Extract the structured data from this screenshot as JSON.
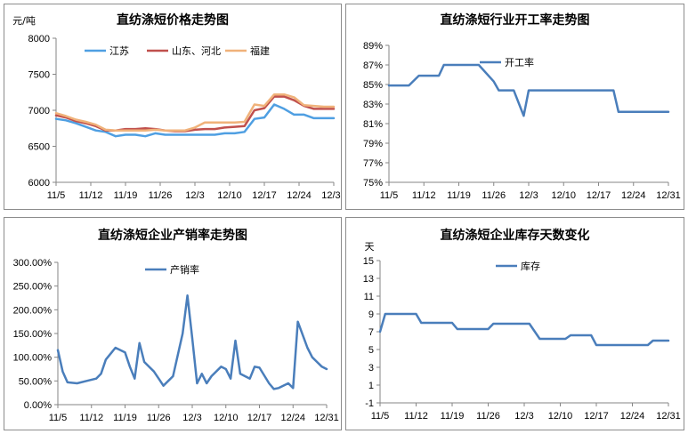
{
  "chart_data": [
    {
      "type": "line",
      "title": "直纺涤短价格走势图",
      "unit_label": "元/吨",
      "ylim": [
        6000,
        8000
      ],
      "yticks": [
        "6000",
        "6500",
        "7000",
        "7500",
        "8000"
      ],
      "x_ticks": [
        "11/5",
        "11/12",
        "11/19",
        "11/26",
        "12/3",
        "12/10",
        "12/17",
        "12/24",
        "12/31"
      ],
      "x_range": [
        0,
        56
      ],
      "legend_position": "top",
      "series": [
        {
          "name": "江苏",
          "color": "#4f9fe2",
          "x": [
            0,
            2,
            4,
            6,
            8,
            10,
            12,
            14,
            16,
            18,
            20,
            22,
            24,
            26,
            28,
            30,
            32,
            34,
            36,
            38,
            40,
            42,
            44,
            46,
            48,
            50,
            52,
            54,
            56
          ],
          "values": [
            6880,
            6860,
            6820,
            6770,
            6720,
            6700,
            6640,
            6660,
            6660,
            6640,
            6680,
            6660,
            6660,
            6660,
            6660,
            6660,
            6660,
            6680,
            6680,
            6700,
            6880,
            6900,
            7080,
            7020,
            6940,
            6940,
            6890,
            6890,
            6890
          ]
        },
        {
          "name": "山东、河北",
          "color": "#c0504d",
          "x": [
            0,
            2,
            4,
            6,
            8,
            10,
            12,
            14,
            16,
            18,
            20,
            22,
            24,
            26,
            28,
            30,
            32,
            34,
            36,
            38,
            40,
            42,
            44,
            46,
            48,
            50,
            52,
            54,
            56
          ],
          "values": [
            6930,
            6900,
            6850,
            6820,
            6780,
            6720,
            6720,
            6740,
            6740,
            6750,
            6740,
            6720,
            6710,
            6710,
            6730,
            6740,
            6740,
            6760,
            6770,
            6780,
            7000,
            7030,
            7190,
            7190,
            7140,
            7060,
            7020,
            7020,
            7020
          ]
        },
        {
          "name": "福建",
          "color": "#f0b27a",
          "x": [
            0,
            2,
            4,
            6,
            8,
            10,
            12,
            14,
            16,
            18,
            20,
            22,
            24,
            26,
            28,
            30,
            32,
            34,
            36,
            38,
            40,
            42,
            44,
            46,
            48,
            50,
            52,
            54,
            56
          ],
          "values": [
            6960,
            6920,
            6870,
            6840,
            6800,
            6730,
            6720,
            6720,
            6720,
            6720,
            6730,
            6720,
            6720,
            6720,
            6760,
            6830,
            6830,
            6830,
            6830,
            6840,
            7080,
            7060,
            7220,
            7220,
            7180,
            7070,
            7060,
            7050,
            7050
          ]
        }
      ]
    },
    {
      "type": "line",
      "title": "直纺涤短行业开工率走势图",
      "ylim": [
        75,
        89
      ],
      "yticks": [
        "75%",
        "77%",
        "79%",
        "81%",
        "83%",
        "85%",
        "87%",
        "89%"
      ],
      "x_ticks": [
        "11/5",
        "11/12",
        "11/19",
        "11/26",
        "12/3",
        "12/10",
        "12/17",
        "12/24",
        "12/31"
      ],
      "x_range": [
        0,
        56
      ],
      "legend_position": "top",
      "series": [
        {
          "name": "开工率",
          "color": "#4a7ebb",
          "x": [
            0,
            1,
            3,
            4,
            6,
            8,
            10,
            11,
            13,
            15,
            17,
            18,
            21,
            22,
            25,
            27,
            28,
            32,
            35,
            42,
            45,
            46,
            49,
            53,
            56
          ],
          "values": [
            84.9,
            84.9,
            84.9,
            84.9,
            85.9,
            85.9,
            85.9,
            87.0,
            87.0,
            87.0,
            87.0,
            87.0,
            85.3,
            84.4,
            84.4,
            81.8,
            84.4,
            84.4,
            84.4,
            84.4,
            84.4,
            82.2,
            82.2,
            82.2,
            82.2
          ]
        }
      ]
    },
    {
      "type": "line",
      "title": "直纺涤短企业产销率走势图",
      "ylim": [
        0,
        300
      ],
      "yticks": [
        "0.00%",
        "50.00%",
        "100.00%",
        "150.00%",
        "200.00%",
        "250.00%",
        "300.00%"
      ],
      "x_ticks": [
        "11/5",
        "11/12",
        "11/19",
        "11/26",
        "12/3",
        "12/10",
        "12/17",
        "12/24",
        "12/31"
      ],
      "x_range": [
        0,
        56
      ],
      "legend_position": "top",
      "series": [
        {
          "name": "产销率",
          "color": "#4a7ebb",
          "x": [
            0,
            1,
            2,
            4,
            6,
            8,
            9,
            10,
            12,
            14,
            15,
            16,
            17,
            18,
            20,
            21,
            22,
            24,
            26,
            27,
            28,
            29,
            30,
            31,
            32,
            34,
            35,
            36,
            37,
            38,
            40,
            41,
            42,
            44,
            45,
            46,
            48,
            49,
            50,
            52,
            53,
            54,
            55,
            56
          ],
          "values": [
            115,
            70,
            47,
            45,
            50,
            55,
            65,
            95,
            120,
            110,
            80,
            55,
            130,
            90,
            70,
            55,
            40,
            60,
            150,
            230,
            140,
            45,
            65,
            45,
            60,
            80,
            75,
            55,
            135,
            65,
            55,
            80,
            78,
            45,
            33,
            35,
            45,
            35,
            175,
            120,
            100,
            90,
            80,
            75
          ]
        }
      ]
    },
    {
      "type": "line",
      "title": "直纺涤短企业库存天数变化",
      "unit_label": "天",
      "ylim": [
        -1,
        15
      ],
      "yticks": [
        "-1",
        "1",
        "3",
        "5",
        "7",
        "9",
        "11",
        "13",
        "15"
      ],
      "x_ticks": [
        "11/5",
        "11/12",
        "11/19",
        "11/26",
        "12/3",
        "12/10",
        "12/17",
        "12/24",
        "12/31"
      ],
      "x_range": [
        0,
        56
      ],
      "legend_position": "top",
      "series": [
        {
          "name": "库存",
          "color": "#4a7ebb",
          "x": [
            0,
            1,
            7,
            8,
            14,
            15,
            21,
            22,
            28,
            29,
            31,
            36,
            37,
            41,
            42,
            47,
            48,
            50,
            52,
            53,
            56
          ],
          "values": [
            7,
            9,
            9,
            8,
            8,
            7.3,
            7.3,
            7.9,
            7.9,
            7.9,
            6.2,
            6.2,
            6.6,
            6.6,
            5.5,
            5.5,
            5.5,
            5.5,
            5.5,
            6,
            6
          ]
        }
      ]
    }
  ]
}
